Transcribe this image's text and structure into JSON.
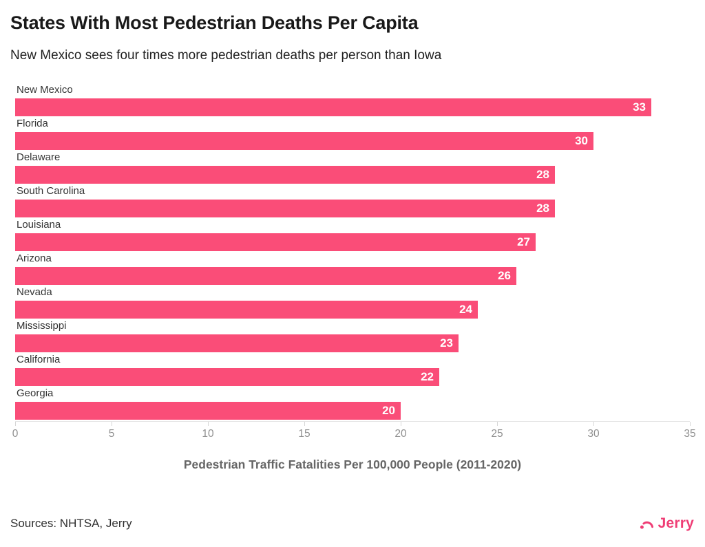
{
  "header": {
    "title": "States With Most Pedestrian Deaths Per Capita",
    "subtitle": "New Mexico sees four times more pedestrian deaths per person than Iowa"
  },
  "chart_data": {
    "type": "bar",
    "orientation": "horizontal",
    "title": "States With Most Pedestrian Deaths Per Capita",
    "subtitle": "New Mexico sees four times more pedestrian deaths per person than Iowa",
    "categories": [
      "New Mexico",
      "Florida",
      "Delaware",
      "South Carolina",
      "Louisiana",
      "Arizona",
      "Nevada",
      "Mississippi",
      "California",
      "Georgia"
    ],
    "values": [
      33,
      30,
      28,
      28,
      27,
      26,
      24,
      23,
      22,
      20
    ],
    "xlabel": "Pedestrian Traffic Fatalities Per 100,000 People (2011-2020)",
    "ylabel": "",
    "xlim": [
      0,
      35
    ],
    "xticks": [
      0,
      5,
      10,
      15,
      20,
      25,
      30,
      35
    ],
    "grid": false,
    "legend": "none",
    "bar_color": "#FA4D78",
    "value_label_color": "#FFFFFF",
    "value_label_position": "inside-end"
  },
  "footer": {
    "sources": "Sources: NHTSA, Jerry",
    "logo_text": "Jerry",
    "logo_color": "#EF3D75"
  }
}
